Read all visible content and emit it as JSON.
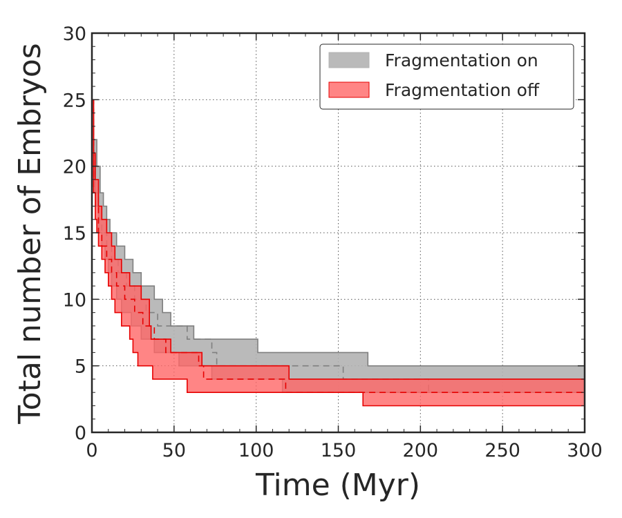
{
  "chart_data": {
    "type": "area",
    "title": "",
    "xlabel": "Time (Myr)",
    "ylabel": "Total number of Embryos",
    "xlim": [
      0,
      300
    ],
    "ylim": [
      0,
      30
    ],
    "xticks": [
      0,
      50,
      100,
      150,
      200,
      250,
      300
    ],
    "yticks": [
      0,
      5,
      10,
      15,
      20,
      25,
      30
    ],
    "grid": true,
    "legend_position": "top-right",
    "colors": {
      "on_fill": "#b3b3b3",
      "on_edge": "#7f7f7f",
      "off_fill": "#ff6666",
      "off_edge": "#e60000"
    },
    "series": [
      {
        "name": "Fragmentation on",
        "upper": [
          [
            0,
            25
          ],
          [
            1,
            22
          ],
          [
            3,
            20
          ],
          [
            5,
            18
          ],
          [
            7,
            17
          ],
          [
            9,
            16
          ],
          [
            11,
            15
          ],
          [
            15,
            14
          ],
          [
            20,
            13
          ],
          [
            25,
            12
          ],
          [
            30,
            11
          ],
          [
            38,
            10
          ],
          [
            43,
            9
          ],
          [
            48,
            8
          ],
          [
            62,
            7
          ],
          [
            101,
            6
          ],
          [
            168,
            5
          ],
          [
            300,
            5
          ]
        ],
        "median": [
          [
            0,
            25
          ],
          [
            1,
            20
          ],
          [
            2,
            18
          ],
          [
            4,
            16
          ],
          [
            6,
            15
          ],
          [
            9,
            14
          ],
          [
            12,
            13
          ],
          [
            16,
            12
          ],
          [
            21,
            11
          ],
          [
            26,
            10
          ],
          [
            33,
            9
          ],
          [
            40,
            8
          ],
          [
            58,
            7
          ],
          [
            73,
            6
          ],
          [
            76,
            5
          ],
          [
            153,
            4
          ],
          [
            200,
            4
          ],
          [
            205,
            3
          ],
          [
            300,
            3
          ]
        ],
        "lower": [
          [
            0,
            24
          ],
          [
            1,
            19
          ],
          [
            2,
            17
          ],
          [
            4,
            15
          ],
          [
            6,
            14
          ],
          [
            8,
            13
          ],
          [
            10,
            12
          ],
          [
            12,
            11
          ],
          [
            15,
            10
          ],
          [
            18,
            9
          ],
          [
            24,
            8
          ],
          [
            30,
            7
          ],
          [
            38,
            6
          ],
          [
            53,
            5
          ],
          [
            73,
            4
          ],
          [
            110,
            4
          ],
          [
            116,
            3
          ],
          [
            200,
            3
          ],
          [
            210,
            3
          ],
          [
            300,
            3
          ]
        ]
      },
      {
        "name": "Fragmentation off",
        "upper": [
          [
            0,
            25
          ],
          [
            1,
            21
          ],
          [
            2,
            19
          ],
          [
            4,
            17
          ],
          [
            6,
            16
          ],
          [
            9,
            15
          ],
          [
            12,
            14
          ],
          [
            14,
            13
          ],
          [
            18,
            12
          ],
          [
            23,
            11
          ],
          [
            30,
            10
          ],
          [
            35,
            8
          ],
          [
            36,
            7
          ],
          [
            48,
            6
          ],
          [
            67,
            5
          ],
          [
            120,
            4
          ],
          [
            300,
            4
          ]
        ],
        "median": [
          [
            0,
            25
          ],
          [
            1,
            18
          ],
          [
            2,
            17
          ],
          [
            4,
            15
          ],
          [
            6,
            14
          ],
          [
            9,
            13
          ],
          [
            12,
            12
          ],
          [
            15,
            11
          ],
          [
            20,
            10
          ],
          [
            26,
            9
          ],
          [
            31,
            8
          ],
          [
            38,
            7
          ],
          [
            45,
            6
          ],
          [
            65,
            5
          ],
          [
            68,
            4
          ],
          [
            115,
            4
          ],
          [
            118,
            3
          ],
          [
            300,
            3
          ]
        ],
        "lower": [
          [
            0,
            25
          ],
          [
            1,
            18
          ],
          [
            2,
            16
          ],
          [
            3,
            15
          ],
          [
            4,
            14
          ],
          [
            6,
            13
          ],
          [
            8,
            12
          ],
          [
            10,
            11
          ],
          [
            12,
            10
          ],
          [
            14,
            9
          ],
          [
            18,
            8
          ],
          [
            23,
            7
          ],
          [
            25,
            6
          ],
          [
            28,
            5
          ],
          [
            37,
            4
          ],
          [
            58,
            3
          ],
          [
            165,
            2
          ],
          [
            300,
            2
          ]
        ]
      }
    ]
  }
}
